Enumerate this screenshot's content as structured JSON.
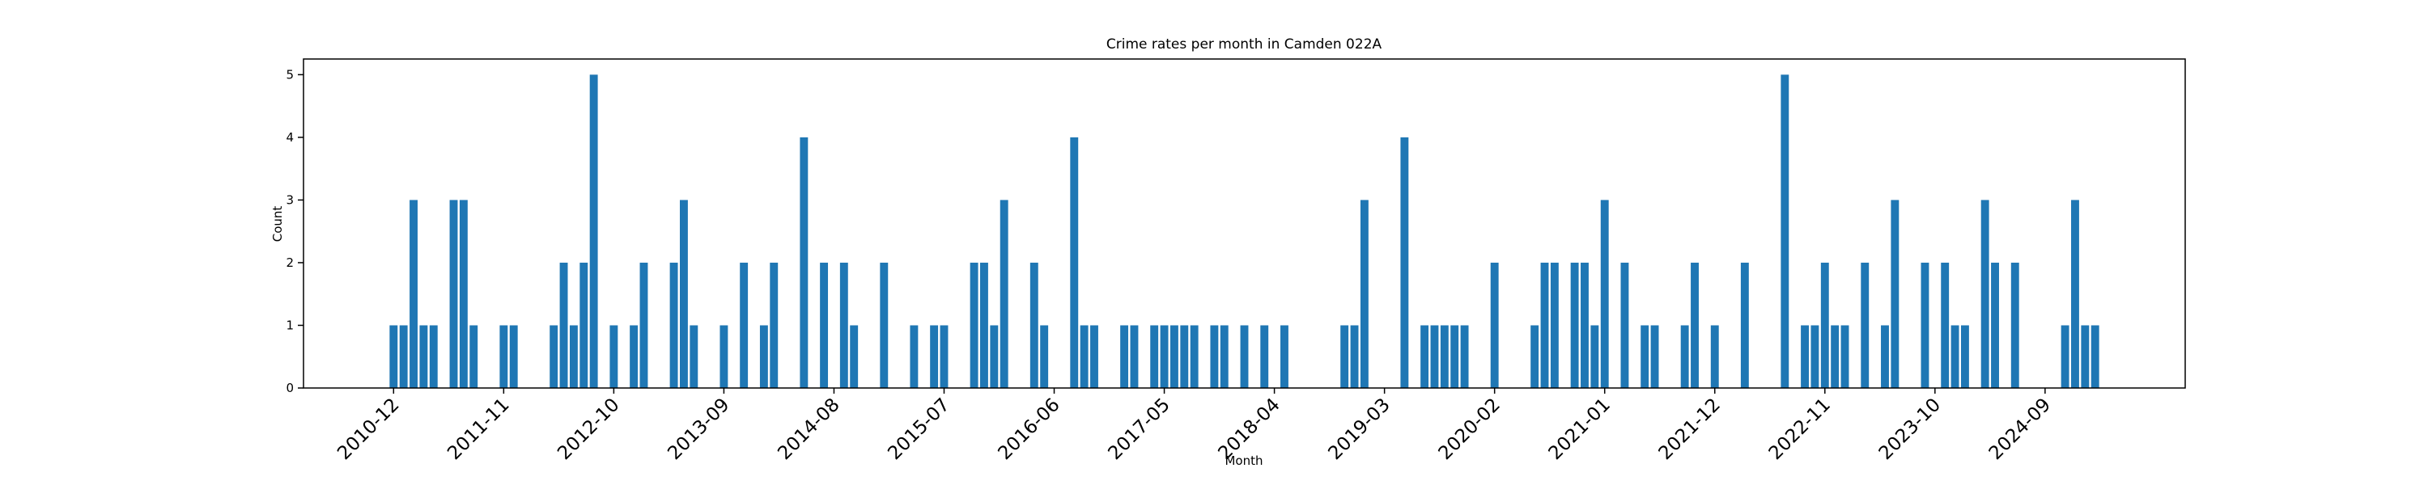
{
  "chart_data": {
    "type": "bar",
    "title": "Crime rates per month in Camden 022A",
    "xlabel": "Month",
    "ylabel": "Count",
    "color": "#1f77b4",
    "x": [
      "2010-12",
      "2011-01",
      "2011-02",
      "2011-03",
      "2011-04",
      "2011-06",
      "2011-07",
      "2011-08",
      "2011-11",
      "2011-12",
      "2012-04",
      "2012-05",
      "2012-06",
      "2012-07",
      "2012-08",
      "2012-10",
      "2012-12",
      "2013-01",
      "2013-04",
      "2013-05",
      "2013-06",
      "2013-09",
      "2013-11",
      "2014-01",
      "2014-02",
      "2014-05",
      "2014-07",
      "2014-09",
      "2014-10",
      "2015-01",
      "2015-04",
      "2015-06",
      "2015-07",
      "2015-10",
      "2015-11",
      "2015-12",
      "2016-01",
      "2016-04",
      "2016-05",
      "2016-08",
      "2016-09",
      "2016-10",
      "2017-01",
      "2017-02",
      "2017-04",
      "2017-05",
      "2017-06",
      "2017-07",
      "2017-08",
      "2017-10",
      "2017-11",
      "2018-01",
      "2018-03",
      "2018-05",
      "2018-11",
      "2018-12",
      "2019-01",
      "2019-05",
      "2019-07",
      "2019-08",
      "2019-09",
      "2019-10",
      "2019-11",
      "2020-02",
      "2020-06",
      "2020-07",
      "2020-08",
      "2020-10",
      "2020-11",
      "2020-12",
      "2021-01",
      "2021-03",
      "2021-05",
      "2021-06",
      "2021-09",
      "2021-10",
      "2021-12",
      "2022-03",
      "2022-07",
      "2022-09",
      "2022-10",
      "2022-11",
      "2022-12",
      "2023-01",
      "2023-03",
      "2023-05",
      "2023-06",
      "2023-09",
      "2023-11",
      "2023-12",
      "2024-01",
      "2024-03",
      "2024-04",
      "2024-06",
      "2024-11",
      "2024-12",
      "2025-01",
      "2025-02"
    ],
    "values": [
      1,
      1,
      3,
      1,
      1,
      3,
      3,
      1,
      1,
      1,
      1,
      2,
      1,
      2,
      5,
      1,
      1,
      2,
      2,
      3,
      1,
      1,
      2,
      1,
      2,
      4,
      2,
      2,
      1,
      2,
      1,
      1,
      1,
      2,
      2,
      1,
      3,
      2,
      1,
      4,
      1,
      1,
      1,
      1,
      1,
      1,
      1,
      1,
      1,
      1,
      1,
      1,
      1,
      1,
      1,
      1,
      3,
      4,
      1,
      1,
      1,
      1,
      1,
      2,
      1,
      2,
      2,
      2,
      2,
      1,
      3,
      2,
      1,
      1,
      1,
      2,
      1,
      2,
      5,
      1,
      1,
      2,
      1,
      1,
      2,
      1,
      3,
      2,
      2,
      1,
      1,
      3,
      2,
      2,
      1,
      3,
      1,
      1
    ],
    "xlim": [
      "2010-03",
      "2025-11"
    ],
    "xticks": [
      "2010-12",
      "2011-11",
      "2012-10",
      "2013-09",
      "2014-08",
      "2015-07",
      "2016-06",
      "2017-05",
      "2018-04",
      "2019-03",
      "2020-02",
      "2021-01",
      "2021-12",
      "2022-11",
      "2023-10",
      "2024-09"
    ],
    "ylim": [
      0,
      5.25
    ],
    "yticks": [
      0,
      1,
      2,
      3,
      4,
      5
    ],
    "grid": false
  }
}
